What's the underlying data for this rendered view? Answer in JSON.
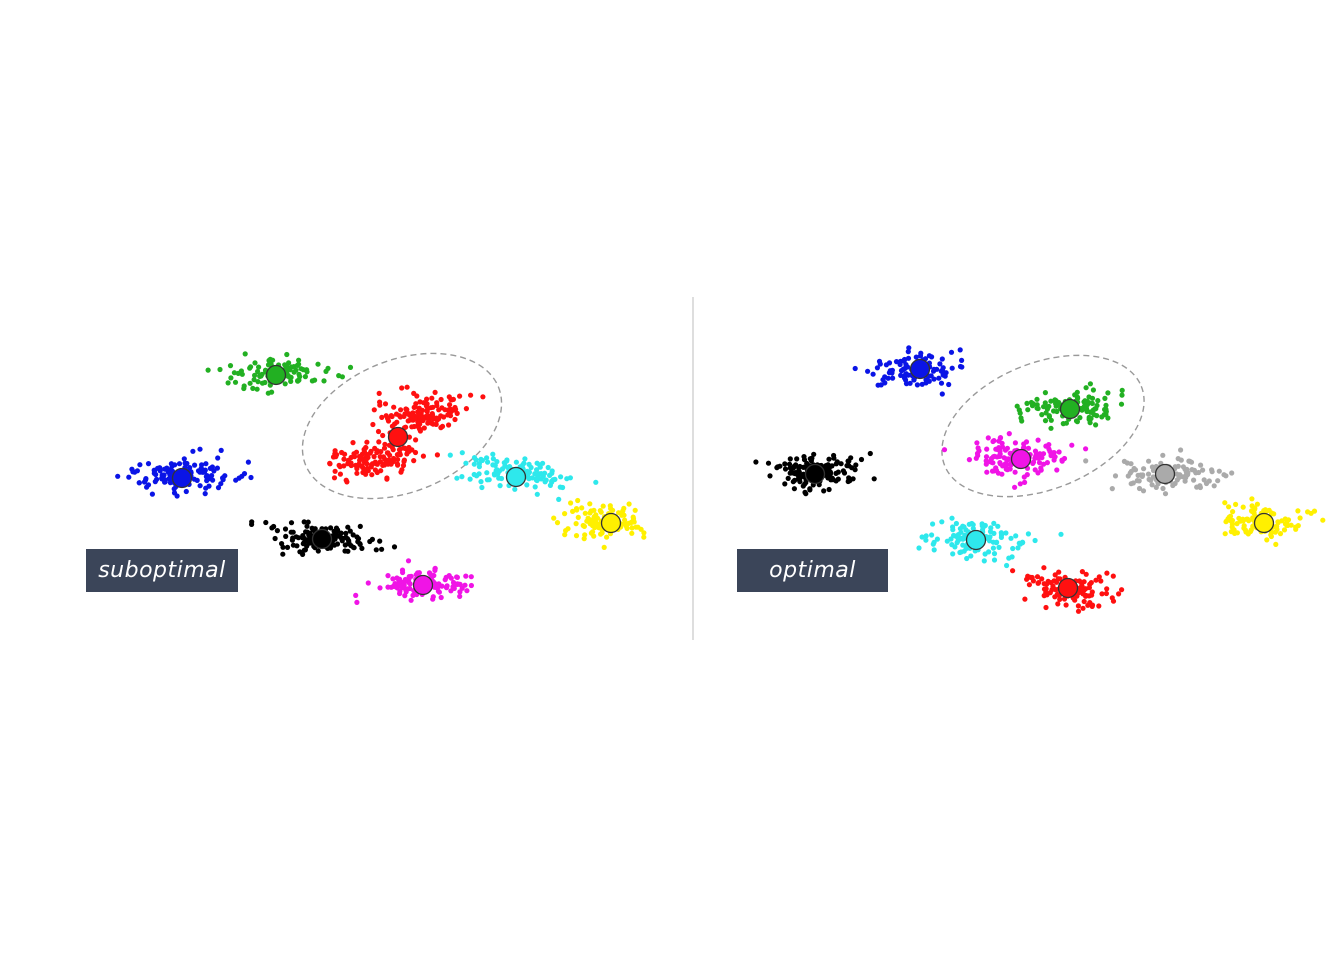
{
  "panels": [
    {
      "id": "left",
      "label": "suboptimal",
      "clusters": [
        {
          "color": "green",
          "hex": "#22b022"
        },
        {
          "color": "red",
          "hex": "#ff1010"
        },
        {
          "color": "blue",
          "hex": "#0a14e6"
        },
        {
          "color": "cyan",
          "hex": "#2ee8ec"
        },
        {
          "color": "yellow",
          "hex": "#fff000"
        },
        {
          "color": "black",
          "hex": "#000000"
        },
        {
          "color": "magenta",
          "hex": "#f014e6"
        }
      ],
      "highlight": "dashed-ellipse"
    },
    {
      "id": "right",
      "label": "optimal",
      "clusters": [
        {
          "color": "blue",
          "hex": "#0a14e6"
        },
        {
          "color": "green",
          "hex": "#22b022"
        },
        {
          "color": "black",
          "hex": "#000000"
        },
        {
          "color": "magenta",
          "hex": "#f014e6"
        },
        {
          "color": "gray",
          "hex": "#aaaaaa"
        },
        {
          "color": "yellow",
          "hex": "#fff000"
        },
        {
          "color": "cyan",
          "hex": "#2ee8ec"
        },
        {
          "color": "red",
          "hex": "#ff1010"
        }
      ],
      "highlight": "dashed-ellipse"
    }
  ]
}
